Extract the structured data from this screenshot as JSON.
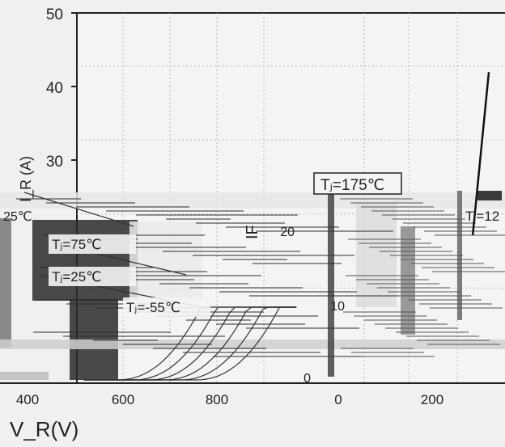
{
  "chart_data": [
    {
      "type": "line",
      "title": "",
      "xlabel": "",
      "ylabel": "",
      "ylim": [
        0,
        50
      ],
      "xlim": [
        0,
        350
      ],
      "y_ticks": [
        "50",
        "40",
        "30",
        "20",
        "10",
        "0"
      ],
      "x_ticks": [
        "0",
        "200"
      ],
      "grid": true,
      "series": [
        {
          "name": "",
          "x": [
            320,
            333
          ],
          "y": [
            20,
            42
          ]
        }
      ],
      "annotations": [
        "Tⱼ=175℃",
        "Tⱼ=12"
      ]
    },
    {
      "type": "line",
      "title": "",
      "xlabel": "V_R(V)",
      "ylabel": "I_R (A)",
      "xlim": [
        350,
        900
      ],
      "x_ticks": [
        "400",
        "600",
        "800"
      ],
      "grid": true,
      "series": [
        {
          "name": "Tⱼ=75℃"
        },
        {
          "name": "Tⱼ=25℃"
        },
        {
          "name": "Tⱼ=-55℃"
        }
      ],
      "annotations": [
        "25℃"
      ]
    }
  ],
  "axis_fragments": [
    "IF",
    "20",
    "10",
    "0"
  ],
  "colors": {
    "background": "#f0f0f0",
    "plot": "#f4f4f4",
    "ink": "#222222",
    "grid": "#b8b8b8",
    "noise": "#2c2c2c"
  }
}
